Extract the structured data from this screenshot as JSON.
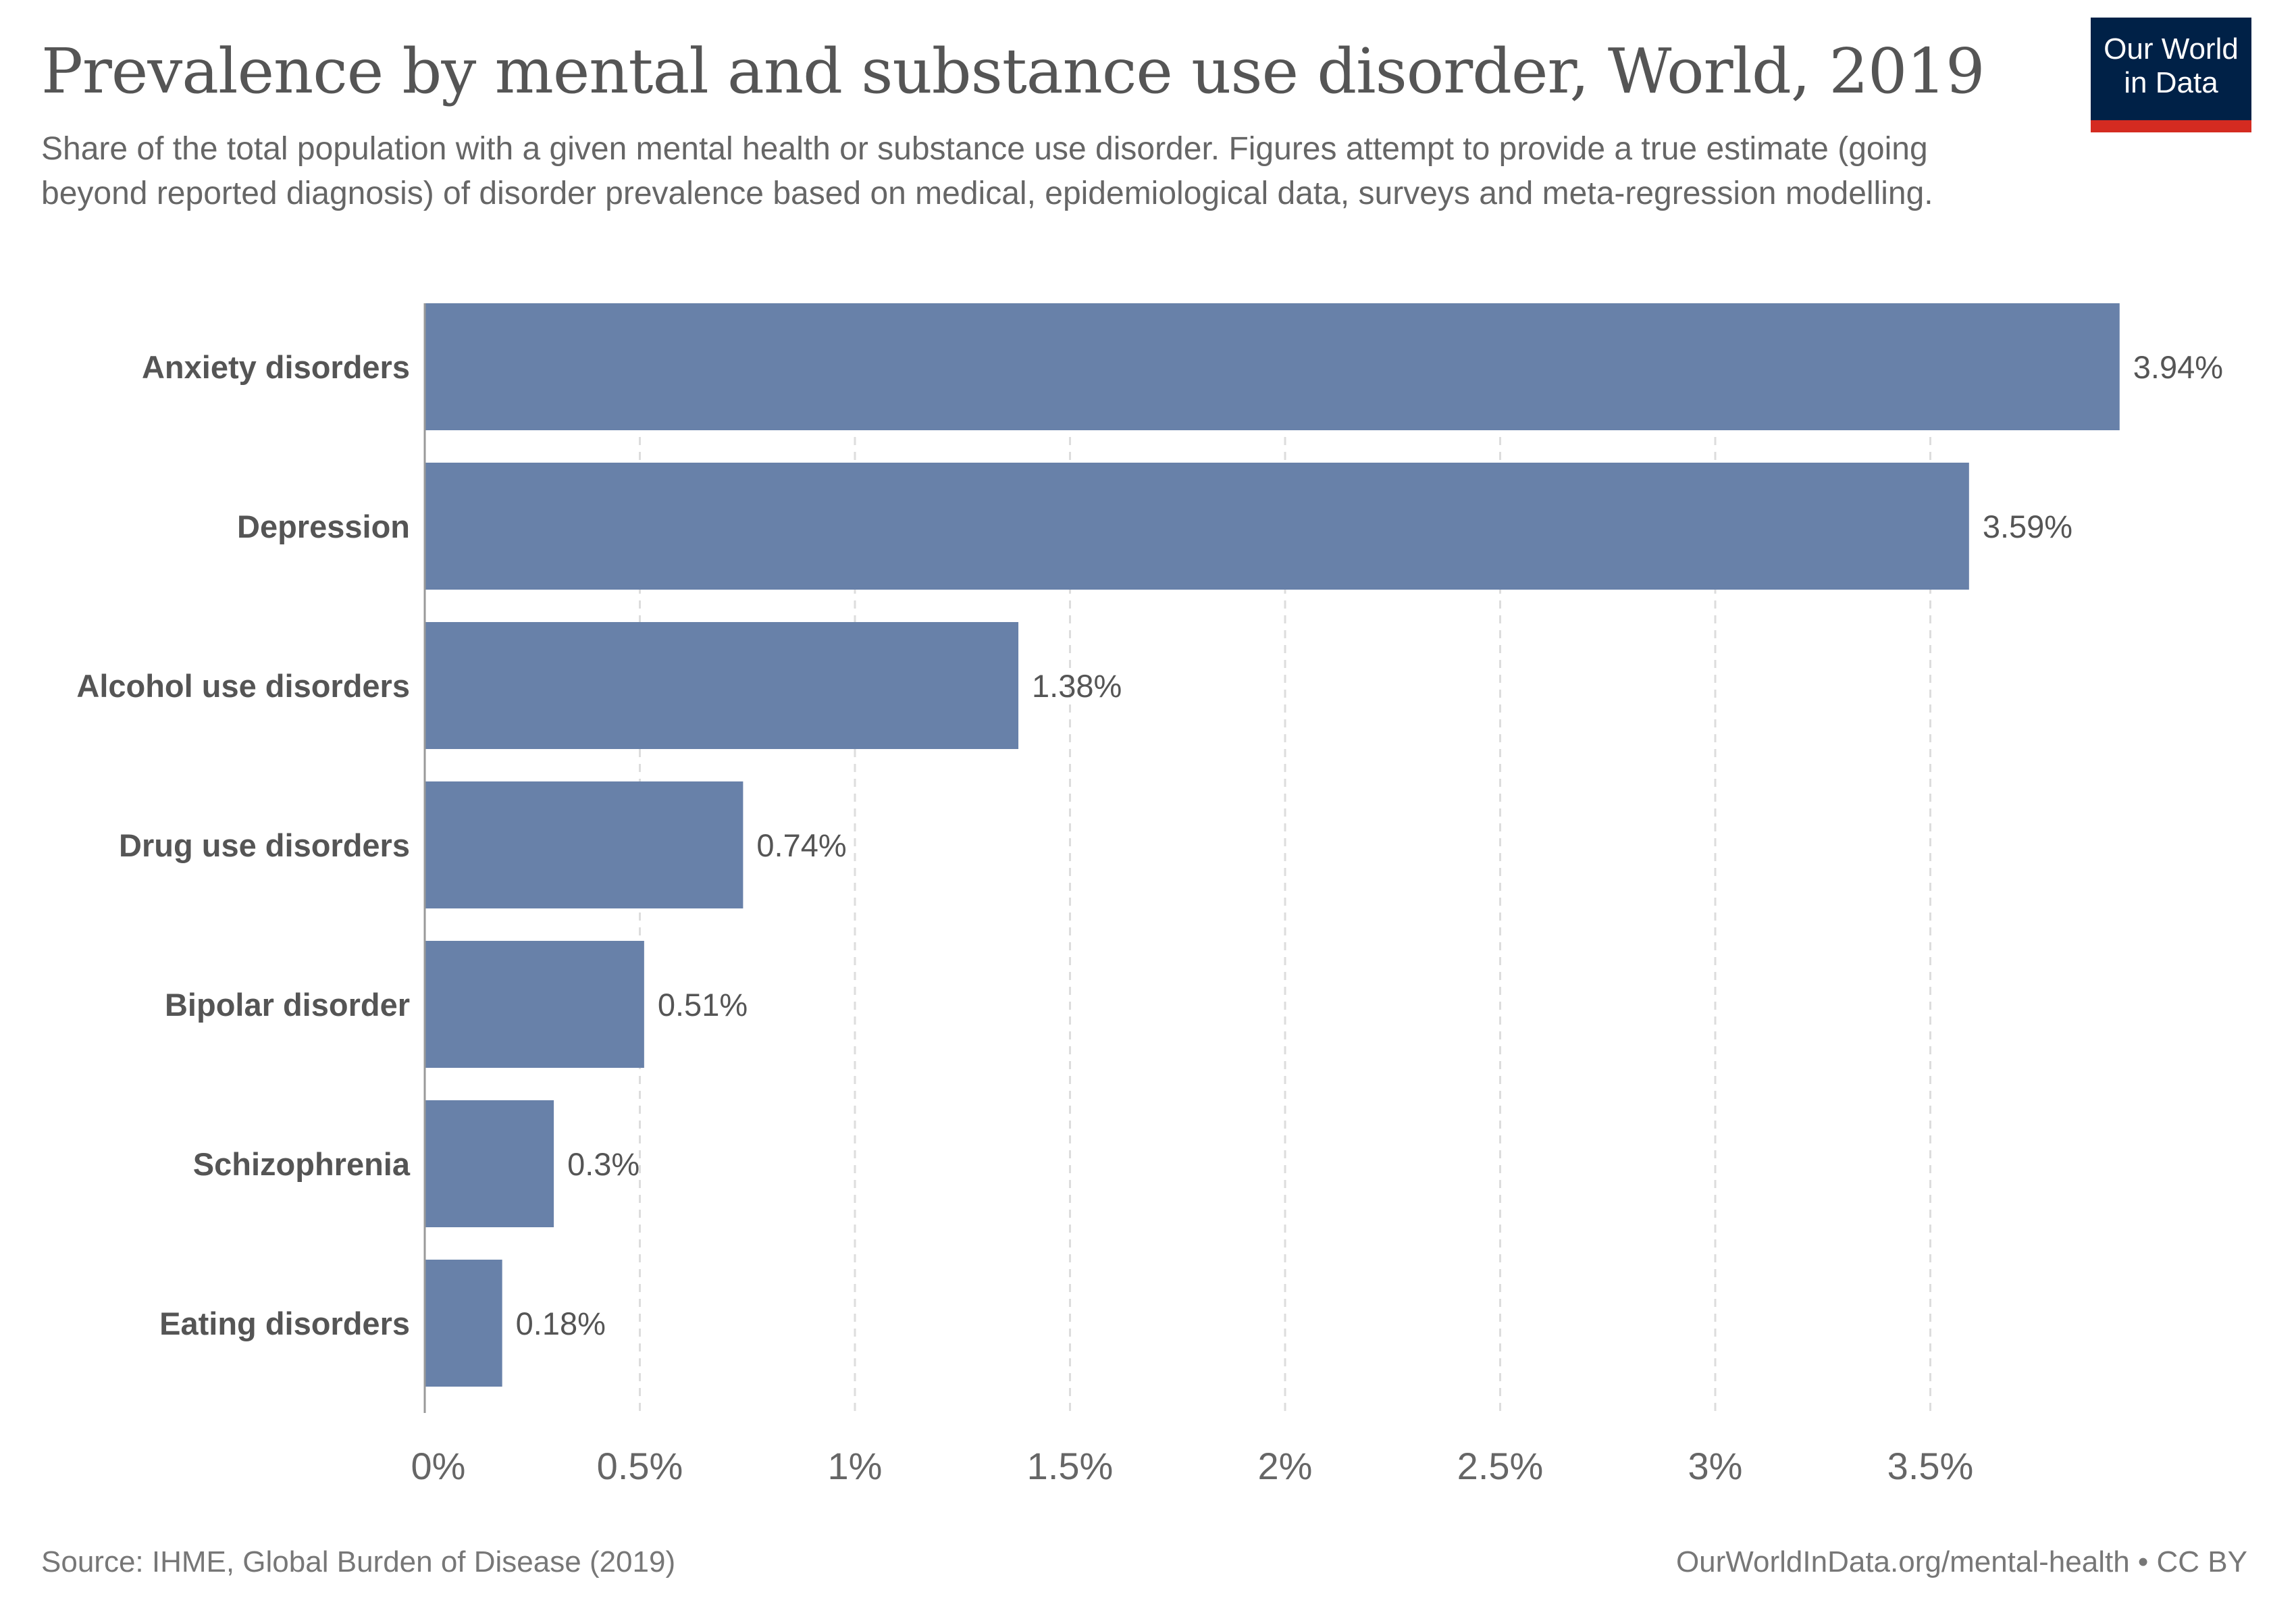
{
  "header": {
    "title": "Prevalence by mental and substance use disorder, World, 2019",
    "subtitle": "Share of the total population with a given mental health or substance use disorder. Figures attempt to provide a true estimate (going beyond reported diagnosis) of disorder prevalence based on medical, epidemiological data, surveys and meta-regression modelling.",
    "logo": "Our World in Data"
  },
  "footer": {
    "source": "Source: IHME, Global Burden of Disease (2019)",
    "credit": "OurWorldInData.org/mental-health • CC BY"
  },
  "colors": {
    "bar": "#6881a9",
    "logo_bg": "#002147",
    "logo_accent": "#d42b21"
  },
  "chart_data": {
    "type": "bar",
    "orientation": "horizontal",
    "categories": [
      "Anxiety disorders",
      "Depression",
      "Alcohol use disorders",
      "Drug use disorders",
      "Bipolar disorder",
      "Schizophrenia",
      "Eating disorders"
    ],
    "values": [
      3.94,
      3.59,
      1.38,
      0.74,
      0.51,
      0.3,
      0.18
    ],
    "value_labels": [
      "3.94%",
      "3.59%",
      "1.38%",
      "0.74%",
      "0.51%",
      "0.3%",
      "0.18%"
    ],
    "xlim": [
      0,
      3.94
    ],
    "xticks": [
      0,
      0.5,
      1,
      1.5,
      2,
      2.5,
      3,
      3.5
    ],
    "xtick_labels": [
      "0%",
      "0.5%",
      "1%",
      "1.5%",
      "2%",
      "2.5%",
      "3%",
      "3.5%"
    ],
    "grid": "vertical dashed",
    "title": "Prevalence by mental and substance use disorder, World, 2019"
  }
}
